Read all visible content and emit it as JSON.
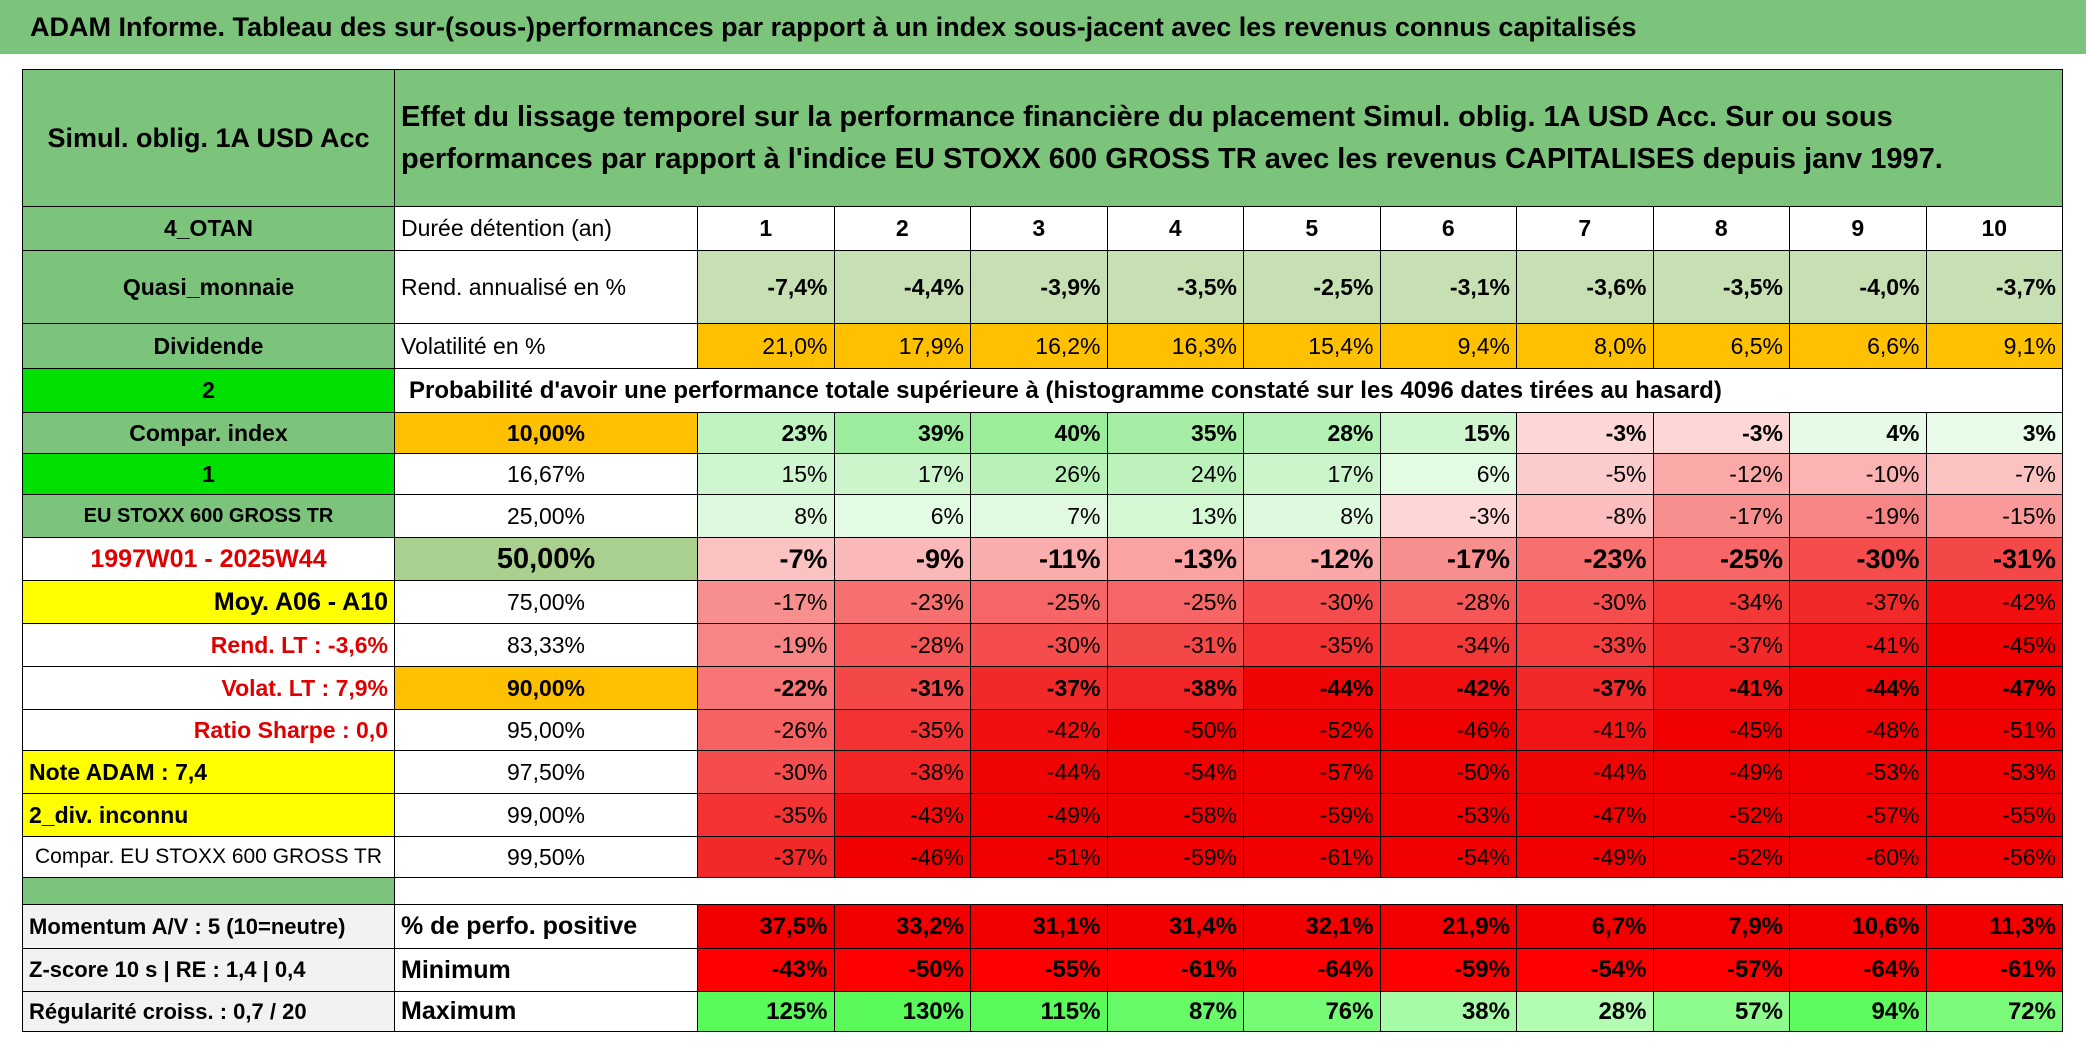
{
  "title": "ADAM Informe. Tableau des sur-(sous-)performances par rapport à un index sous-jacent avec les revenus connus capitalisés",
  "fund": "Simul. oblig. 1A USD Acc",
  "description": "Effet du lissage temporel sur la performance financière du placement Simul. oblig. 1A USD Acc. Sur ou sous performances par rapport à l'indice EU STOXX 600 GROSS TR avec les revenus CAPITALISES depuis janv 1997.",
  "left": [
    "4_OTAN",
    "Quasi_monnaie",
    "Dividende",
    "2",
    "Compar. index",
    "1",
    "EU STOXX 600 GROSS TR",
    "1997W01 - 2025W44",
    "Moy. A06 - A10",
    "Rend. LT :   -3,6%",
    "Volat. LT :   7,9%",
    "Ratio Sharpe :    0,0",
    "Note ADAM : 7,4",
    "2_div. inconnu",
    "Compar. EU STOXX 600 GROSS TR"
  ],
  "horizon": {
    "label": "Durée détention (an)",
    "values": [
      1,
      2,
      3,
      4,
      5,
      6,
      7,
      8,
      9,
      10
    ]
  },
  "stats": [
    {
      "label": "Rend. annualisé en %",
      "cells": [
        "-7,4%",
        "-4,4%",
        "-3,9%",
        "-3,5%",
        "-2,5%",
        "-3,1%",
        "-3,6%",
        "-3,5%",
        "-4,0%",
        "-3,7%"
      ]
    },
    {
      "label": "Volatilité en %",
      "cells": [
        "21,0%",
        "17,9%",
        "16,2%",
        "16,3%",
        "15,4%",
        "9,4%",
        "8,0%",
        "6,5%",
        "6,6%",
        "9,1%"
      ]
    }
  ],
  "prob_title": "Probabilité d'avoir une performance totale supérieure à (histogramme constaté sur les 4096 dates tirées au hasard)",
  "quantiles": [
    {
      "label": "10,00%",
      "cells": [
        "23%",
        "39%",
        "40%",
        "35%",
        "28%",
        "15%",
        "-3%",
        "-3%",
        "4%",
        "3%"
      ]
    },
    {
      "label": "16,67%",
      "cells": [
        "15%",
        "17%",
        "26%",
        "24%",
        "17%",
        "6%",
        "-5%",
        "-12%",
        "-10%",
        "-7%"
      ]
    },
    {
      "label": "25,00%",
      "cells": [
        "8%",
        "6%",
        "7%",
        "13%",
        "8%",
        "-3%",
        "-8%",
        "-17%",
        "-19%",
        "-15%"
      ]
    },
    {
      "label": "50,00%",
      "cells": [
        "-7%",
        "-9%",
        "-11%",
        "-13%",
        "-12%",
        "-17%",
        "-23%",
        "-25%",
        "-30%",
        "-31%"
      ]
    },
    {
      "label": "75,00%",
      "cells": [
        "-17%",
        "-23%",
        "-25%",
        "-25%",
        "-30%",
        "-28%",
        "-30%",
        "-34%",
        "-37%",
        "-42%"
      ]
    },
    {
      "label": "83,33%",
      "cells": [
        "-19%",
        "-28%",
        "-30%",
        "-31%",
        "-35%",
        "-34%",
        "-33%",
        "-37%",
        "-41%",
        "-45%"
      ]
    },
    {
      "label": "90,00%",
      "cells": [
        "-22%",
        "-31%",
        "-37%",
        "-38%",
        "-44%",
        "-42%",
        "-37%",
        "-41%",
        "-44%",
        "-47%"
      ]
    },
    {
      "label": "95,00%",
      "cells": [
        "-26%",
        "-35%",
        "-42%",
        "-50%",
        "-52%",
        "-46%",
        "-41%",
        "-45%",
        "-48%",
        "-51%"
      ]
    },
    {
      "label": "97,50%",
      "cells": [
        "-30%",
        "-38%",
        "-44%",
        "-54%",
        "-57%",
        "-50%",
        "-44%",
        "-49%",
        "-53%",
        "-53%"
      ]
    },
    {
      "label": "99,00%",
      "cells": [
        "-35%",
        "-43%",
        "-49%",
        "-58%",
        "-59%",
        "-53%",
        "-47%",
        "-52%",
        "-57%",
        "-55%"
      ]
    },
    {
      "label": "99,50%",
      "cells": [
        "-37%",
        "-46%",
        "-51%",
        "-59%",
        "-61%",
        "-54%",
        "-49%",
        "-52%",
        "-60%",
        "-56%"
      ]
    }
  ],
  "bottom_left": [
    "Momentum A/V : 5 (10=neutre)",
    "Z-score 10 s | RE : 1,4 | 0,4",
    "Régularité croiss. : 0,7 / 20"
  ],
  "bottom_rows": [
    {
      "label": "% de perfo. positive",
      "cells": [
        "37,5%",
        "33,2%",
        "31,1%",
        "31,4%",
        "32,1%",
        "21,9%",
        "6,7%",
        "7,9%",
        "10,6%",
        "11,3%"
      ]
    },
    {
      "label": "Minimum",
      "cells": [
        "-43%",
        "-50%",
        "-55%",
        "-61%",
        "-64%",
        "-59%",
        "-54%",
        "-57%",
        "-64%",
        "-61%"
      ]
    },
    {
      "label": "Maximum",
      "cells": [
        "125%",
        "130%",
        "115%",
        "87%",
        "76%",
        "38%",
        "28%",
        "57%",
        "94%",
        "72%"
      ]
    }
  ]
}
